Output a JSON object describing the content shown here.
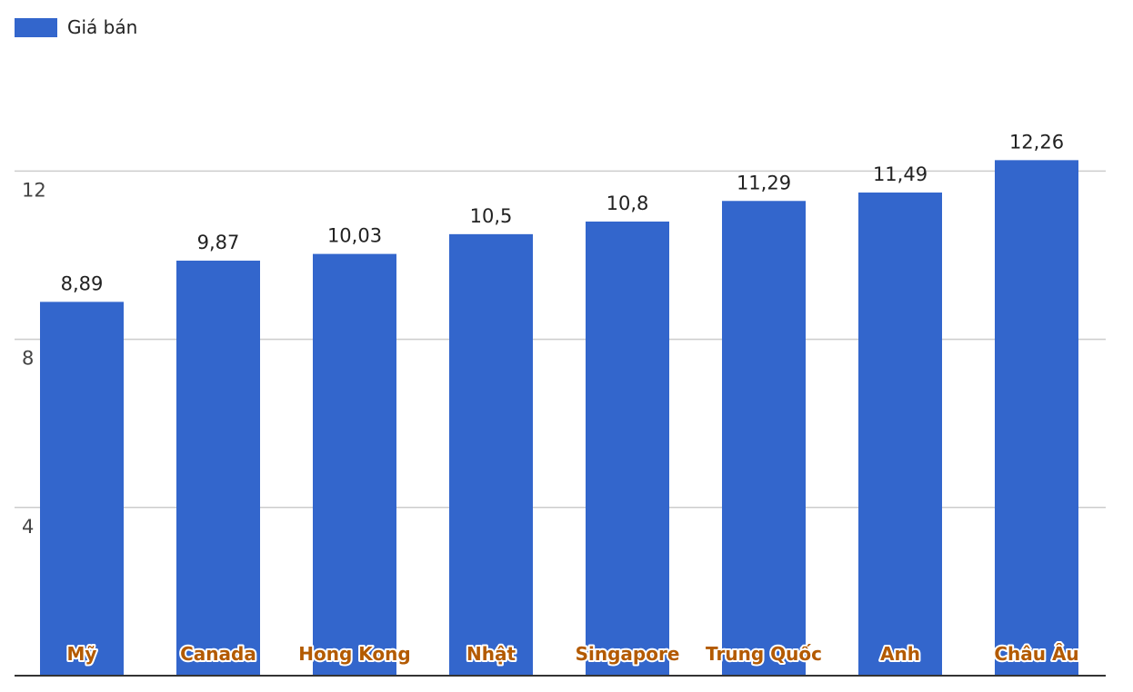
{
  "colors": {
    "bar": "#3366cc",
    "category_label_fill": "#b35a00",
    "category_label_outline": "#ffffff"
  },
  "legend": {
    "label": "Giá bán"
  },
  "chart_data": {
    "type": "bar",
    "title": "",
    "xlabel": "",
    "ylabel": "",
    "categories": [
      "Mỹ",
      "Canada",
      "Hong Kong",
      "Nhật",
      "Singapore",
      "Trung Quốc",
      "Anh",
      "Châu Âu"
    ],
    "series": [
      {
        "name": "Giá bán",
        "values": [
          8.89,
          9.87,
          10.03,
          10.5,
          10.8,
          11.29,
          11.49,
          12.26
        ],
        "labels": [
          "8,89",
          "9,87",
          "10,03",
          "10,5",
          "10,8",
          "11,29",
          "11,49",
          "12,26"
        ]
      }
    ],
    "ylim": [
      0,
      12.26
    ],
    "yticks": [
      4,
      8,
      12
    ],
    "ytick_labels": [
      "4",
      "8",
      "12"
    ],
    "grid": true,
    "legend_position": "top-left",
    "category_label_position": "inside-bar-bottom"
  }
}
